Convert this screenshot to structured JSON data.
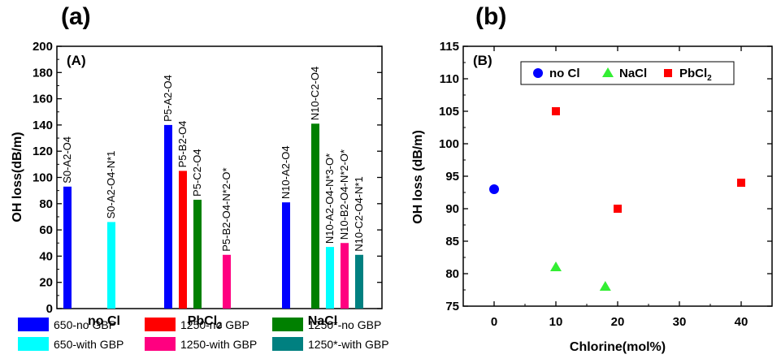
{
  "chart_data": [
    {
      "panel": "(a)",
      "inner_label": "(A)",
      "type": "bar",
      "xlabel": "",
      "ylabel": "OH loss(dB/m)",
      "ylim": [
        0,
        200
      ],
      "yticks": [
        0,
        20,
        40,
        60,
        80,
        100,
        120,
        140,
        160,
        180,
        200
      ],
      "groups": [
        {
          "label": "no Cl",
          "sub": ""
        },
        {
          "label": "PbCl",
          "sub": "2"
        },
        {
          "label": "NaCl",
          "sub": ""
        }
      ],
      "bars": [
        {
          "group": 0,
          "series": 0,
          "value": 93,
          "label": "S0-A2-O4"
        },
        {
          "group": 0,
          "series": 3,
          "value": 66,
          "label": "S0-A2-O4-N*1"
        },
        {
          "group": 1,
          "series": 0,
          "value": 140,
          "label": "P5-A2-O4"
        },
        {
          "group": 1,
          "series": 1,
          "value": 105,
          "label": "P5-B2-O4"
        },
        {
          "group": 1,
          "series": 2,
          "value": 83,
          "label": "P5-C2-O4"
        },
        {
          "group": 1,
          "series": 4,
          "value": 41,
          "label": "P5-B2-O4-N*2-O*"
        },
        {
          "group": 2,
          "series": 0,
          "value": 81,
          "label": "N10-A2-O4"
        },
        {
          "group": 2,
          "series": 2,
          "value": 141,
          "label": "N10-C2-O4"
        },
        {
          "group": 2,
          "series": 3,
          "value": 47,
          "label": "N10-A2-O4-N*3-O*"
        },
        {
          "group": 2,
          "series": 4,
          "value": 50,
          "label": "N10-B2-O4-N*2-O*"
        },
        {
          "group": 2,
          "series": 5,
          "value": 41,
          "label": "N10-C2-O4-N*1"
        }
      ],
      "series": [
        {
          "name": "650-no   GBP",
          "color": "#0000ff"
        },
        {
          "name": "1250-no   GBP",
          "color": "#ff0000"
        },
        {
          "name": "1250*-no GBP",
          "color": "#008000"
        },
        {
          "name": "650-with GBP",
          "color": "#00ffff"
        },
        {
          "name": "1250-with GBP",
          "color": "#ff0080"
        },
        {
          "name": "1250*-with GBP",
          "color": "#008080"
        }
      ],
      "legend_placement": "bottom",
      "grid": false
    },
    {
      "panel": "(b)",
      "inner_label": "(B)",
      "type": "scatter",
      "xlabel": "Chlorine(mol%)",
      "ylabel": "OH loss (dB/m)",
      "xlim": [
        -5,
        45
      ],
      "ylim": [
        75,
        115
      ],
      "xticks": [
        0,
        10,
        20,
        30,
        40
      ],
      "yticks": [
        75,
        80,
        85,
        90,
        95,
        100,
        105,
        110,
        115
      ],
      "series": [
        {
          "name": "no Cl",
          "sub": "",
          "color": "#0000ff",
          "marker": "circle",
          "points": [
            {
              "x": 0,
              "y": 93
            }
          ]
        },
        {
          "name": "NaCl",
          "sub": "",
          "color": "#33ee33",
          "marker": "triangle",
          "points": [
            {
              "x": 10,
              "y": 81
            },
            {
              "x": 18,
              "y": 78
            }
          ]
        },
        {
          "name": "PbCl",
          "sub": "2",
          "color": "#ff0000",
          "marker": "square",
          "points": [
            {
              "x": 10,
              "y": 105
            },
            {
              "x": 20,
              "y": 90
            },
            {
              "x": 40,
              "y": 94
            }
          ]
        }
      ],
      "legend_placement": "top-left",
      "grid": false
    }
  ]
}
